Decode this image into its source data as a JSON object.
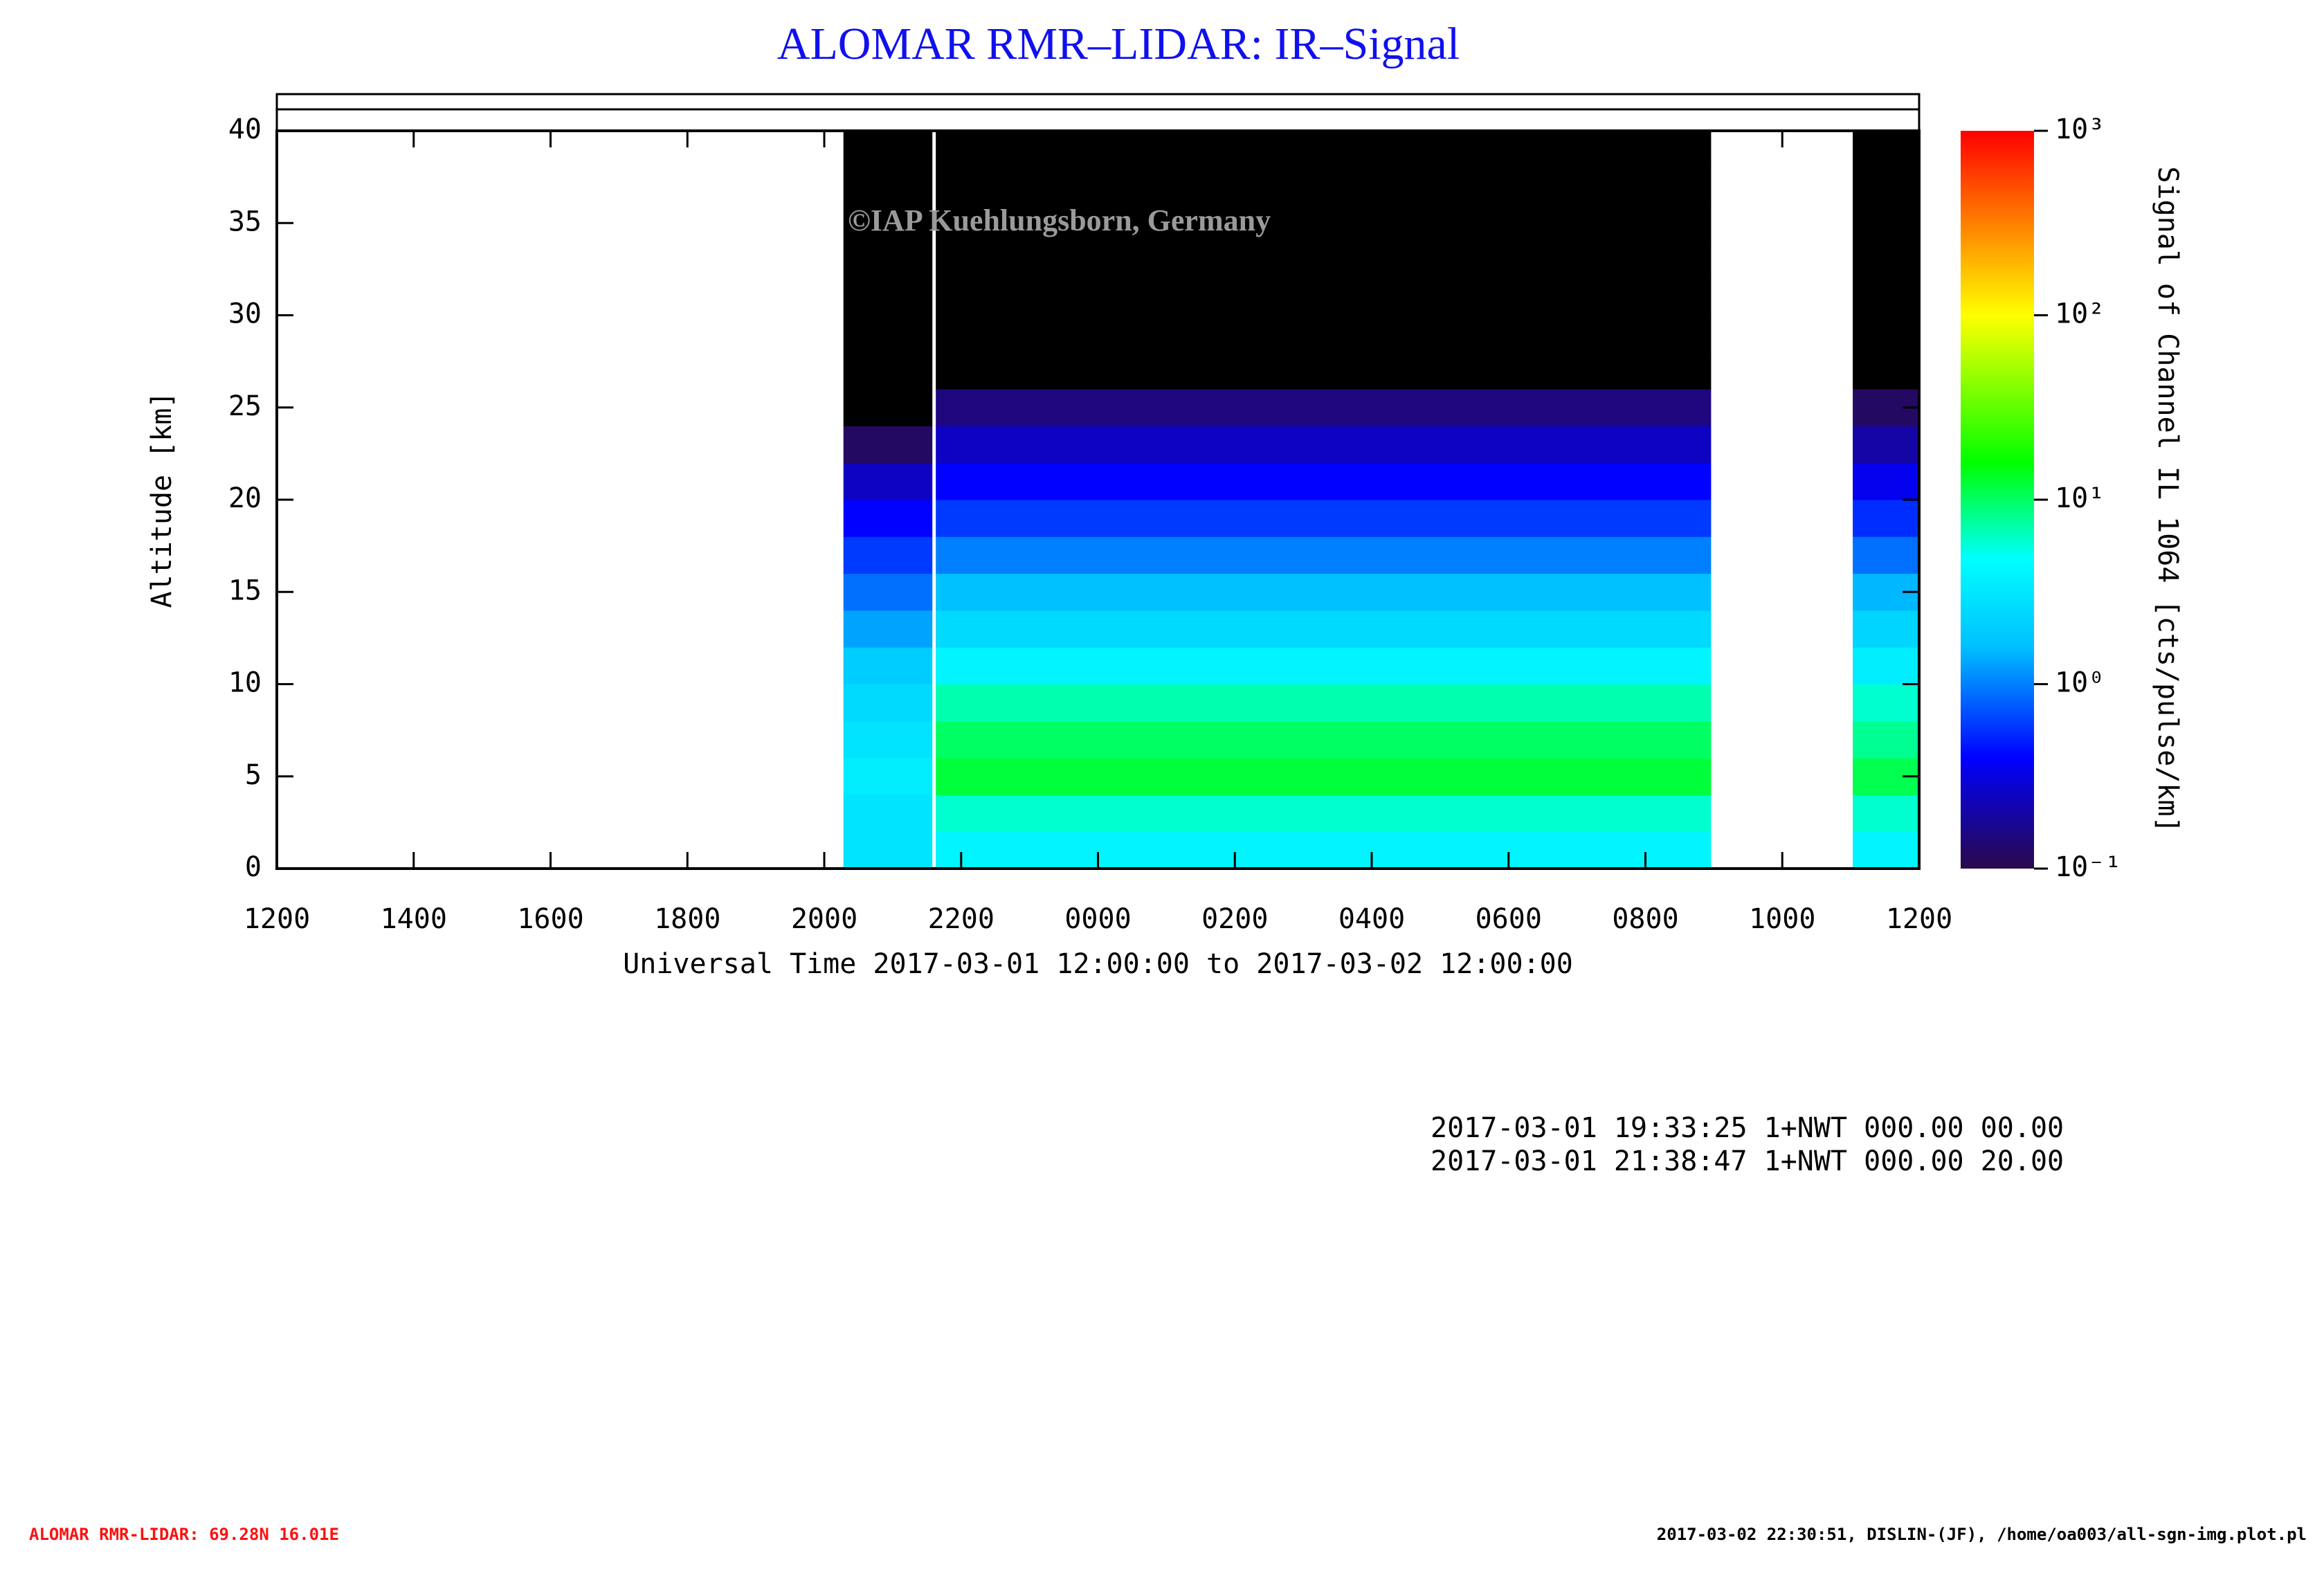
{
  "chart_data": {
    "type": "heatmap",
    "title": "ALOMAR RMR–LIDAR: IR–Signal",
    "x_label": "Universal Time 2017-03-01 12:00:00 to 2017-03-02 12:00:00",
    "y_label": "Altitude [km]",
    "colorbar_label": "Signal of Channel IL 1064 [cts/pulse/km]",
    "watermark": "©IAP Kuehlungsborn, Germany",
    "xlim": [
      0,
      24
    ],
    "xticks": [
      {
        "value": 0,
        "label": "1200"
      },
      {
        "value": 2,
        "label": "1400"
      },
      {
        "value": 4,
        "label": "1600"
      },
      {
        "value": 6,
        "label": "1800"
      },
      {
        "value": 8,
        "label": "2000"
      },
      {
        "value": 10,
        "label": "2200"
      },
      {
        "value": 12,
        "label": "0000"
      },
      {
        "value": 14,
        "label": "0200"
      },
      {
        "value": 16,
        "label": "0400"
      },
      {
        "value": 18,
        "label": "0600"
      },
      {
        "value": 20,
        "label": "0800"
      },
      {
        "value": 22,
        "label": "1000"
      },
      {
        "value": 24,
        "label": "1200"
      }
    ],
    "ylim": [
      0,
      40
    ],
    "yticks": [
      0,
      5,
      10,
      15,
      20,
      25,
      30,
      35,
      40
    ],
    "zlim": [
      0.1,
      1000
    ],
    "zscale": "log",
    "zticks": [
      {
        "value": 0.1,
        "label": "10⁻¹"
      },
      {
        "value": 1,
        "label": "10⁰"
      },
      {
        "value": 10,
        "label": "10¹"
      },
      {
        "value": 100,
        "label": "10²"
      },
      {
        "value": 1000,
        "label": "10³"
      }
    ],
    "colormap": [
      [
        0,
        "#2a0a4a"
      ],
      [
        0.15,
        "#0000ff"
      ],
      [
        0.3,
        "#00c0ff"
      ],
      [
        0.42,
        "#00ffff"
      ],
      [
        0.55,
        "#00ff00"
      ],
      [
        0.75,
        "#ffff00"
      ],
      [
        1,
        "#ff0000"
      ]
    ],
    "below_color": "#000000",
    "altitude_bins": [
      0,
      2,
      4,
      6,
      8,
      10,
      12,
      14,
      16,
      18,
      20,
      22,
      24,
      26,
      28,
      30,
      32,
      34,
      36,
      38,
      40
    ],
    "segments": [
      {
        "start": 8.28,
        "end": 9.58,
        "values": [
          3,
          3,
          3.5,
          3,
          2.5,
          2,
          1.3,
          0.9,
          0.6,
          0.4,
          0.25,
          0.12,
          0.06,
          0.03,
          0.02,
          0.02,
          0.02,
          0.02,
          0.02,
          0.02
        ]
      },
      {
        "start": 9.63,
        "end": 20.96,
        "values": [
          4,
          6,
          12,
          10,
          7,
          4,
          2.5,
          1.6,
          1,
          0.6,
          0.4,
          0.25,
          0.15,
          0.08,
          0.02,
          0.02,
          0.02,
          0.02,
          0.02,
          0.02
        ]
      },
      {
        "start": 23.03,
        "end": 24,
        "values": [
          4,
          6,
          11,
          8,
          6,
          3.5,
          2.3,
          1.5,
          0.9,
          0.55,
          0.35,
          0.2,
          0.12,
          0.07,
          0.02,
          0.02,
          0.02,
          0.02,
          0.02,
          0.02
        ]
      }
    ],
    "notes": [
      "2017-03-01 19:33:25 1+NWT 000.00 00.00",
      "2017-03-01 21:38:47 1+NWT 000.00 20.00"
    ],
    "footer_left": "ALOMAR RMR-LIDAR: 69.28N 16.01E",
    "footer_right": "2017-03-02 22:30:51, DISLIN-(JF), /home/oa003/all-sgn-img.plot.pl"
  }
}
